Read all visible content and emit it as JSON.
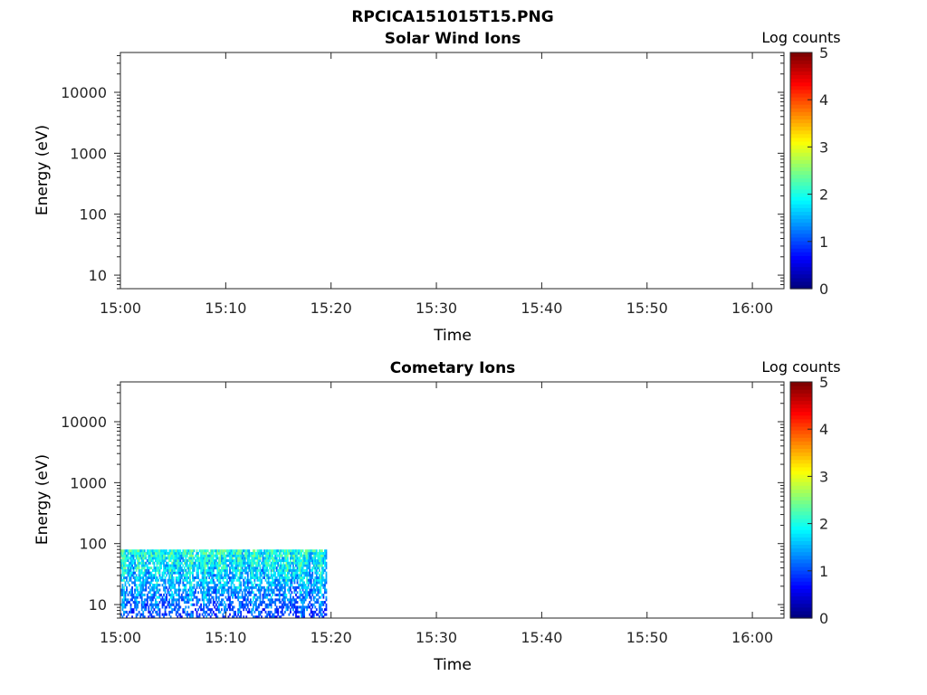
{
  "figure_title": "RPCICA151015T15.PNG",
  "chart_data": [
    {
      "type": "heatmap",
      "title": "Solar Wind Ions",
      "xlabel": "Time",
      "ylabel": "Energy (eV)",
      "x_ticks": [
        "15:00",
        "15:10",
        "15:20",
        "15:30",
        "15:40",
        "15:50",
        "16:00"
      ],
      "xlim_minutes": [
        0,
        63
      ],
      "y_scale": "log",
      "y_ticks": [
        10,
        100,
        1000,
        10000
      ],
      "y_tick_labels": [
        "10",
        "100",
        "1000",
        "10000"
      ],
      "ylim": [
        6,
        45000
      ],
      "colorbar": {
        "label": "Log counts",
        "ticks": [
          "0",
          "1",
          "2",
          "3",
          "4",
          "5"
        ],
        "range": [
          0,
          5
        ],
        "colormap": "jet"
      },
      "data": []
    },
    {
      "type": "heatmap",
      "title": "Cometary Ions",
      "xlabel": "Time",
      "ylabel": "Energy (eV)",
      "x_ticks": [
        "15:00",
        "15:10",
        "15:20",
        "15:30",
        "15:40",
        "15:50",
        "16:00"
      ],
      "xlim_minutes": [
        0,
        63
      ],
      "y_scale": "log",
      "y_ticks": [
        10,
        100,
        1000,
        10000
      ],
      "y_tick_labels": [
        "10",
        "100",
        "1000",
        "10000"
      ],
      "ylim": [
        6,
        45000
      ],
      "colorbar": {
        "label": "Log counts",
        "ticks": [
          "0",
          "1",
          "2",
          "3",
          "4",
          "5"
        ],
        "range": [
          0,
          5
        ],
        "colormap": "jet"
      },
      "data": {
        "time_range_minutes": [
          0,
          19.6
        ],
        "energy_range_eV": [
          6,
          80
        ],
        "log_count_range": [
          0,
          2.5
        ]
      }
    }
  ]
}
